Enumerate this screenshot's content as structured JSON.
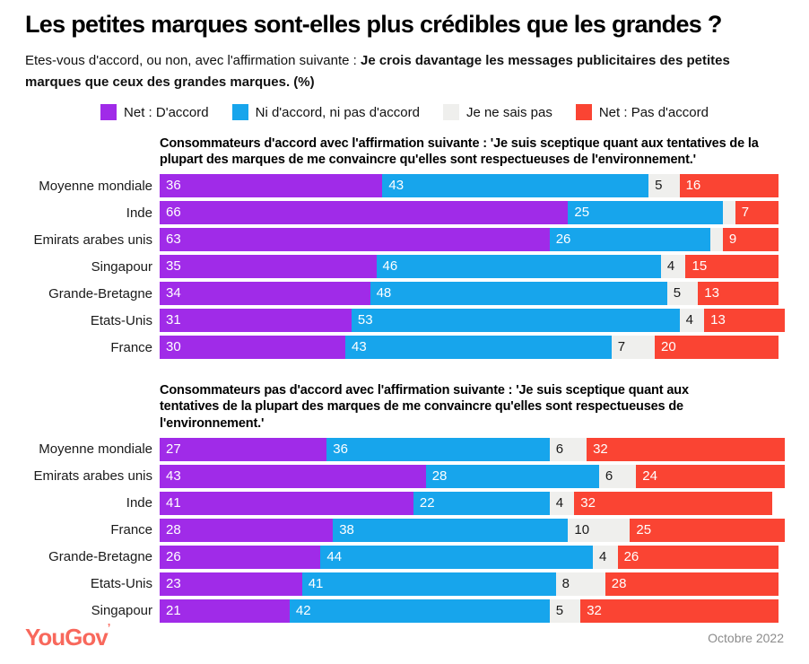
{
  "page": {
    "title": "Les petites marques sont-elles plus crédibles que les grandes ?",
    "subtitle_regular": "Etes-vous d'accord, ou non, avec l'affirmation suivante : ",
    "subtitle_bold": "Je crois davantage les messages publicitaires des petites marques que ceux des grandes marques. (%)"
  },
  "legend": {
    "items": [
      {
        "label": "Net : D'accord",
        "color": "#A02BE8"
      },
      {
        "label": "Ni d'accord, ni pas d'accord",
        "color": "#17A5EC"
      },
      {
        "label": "Je ne sais pas",
        "color": "#EFEFED"
      },
      {
        "label": "Net : Pas d'accord",
        "color": "#FA4433"
      }
    ]
  },
  "chart_data": [
    {
      "type": "bar",
      "stacked": true,
      "orientation": "horizontal",
      "unit": "%",
      "title": "Consommateurs d'accord avec l'affirmation suivante : 'Je suis sceptique quant aux tentatives de la plupart des marques de me convaincre qu'elles sont respectueuses de l'environnement.'",
      "series_names": [
        "Net : D'accord",
        "Ni d'accord, ni pas d'accord",
        "Je ne sais pas",
        "Net : Pas d'accord"
      ],
      "rows": [
        {
          "category": "Moyenne mondiale",
          "values": [
            36,
            43,
            5,
            16
          ],
          "labels": [
            "36",
            "43",
            "5",
            "16"
          ]
        },
        {
          "category": "Inde",
          "values": [
            66,
            25,
            2,
            7
          ],
          "labels": [
            "66",
            "25",
            "",
            "7"
          ]
        },
        {
          "category": "Emirats arabes unis",
          "values": [
            63,
            26,
            2,
            9
          ],
          "labels": [
            "63",
            "26",
            "",
            "9"
          ]
        },
        {
          "category": "Singapour",
          "values": [
            35,
            46,
            4,
            15
          ],
          "labels": [
            "35",
            "46",
            "4",
            "15"
          ]
        },
        {
          "category": "Grande-Bretagne",
          "values": [
            34,
            48,
            5,
            13
          ],
          "labels": [
            "34",
            "48",
            "5",
            "13"
          ]
        },
        {
          "category": "Etats-Unis",
          "values": [
            31,
            53,
            4,
            13
          ],
          "labels": [
            "31",
            "53",
            "4",
            "13"
          ]
        },
        {
          "category": "France",
          "values": [
            30,
            43,
            7,
            20
          ],
          "labels": [
            "30",
            "43",
            "7",
            "20"
          ]
        }
      ]
    },
    {
      "type": "bar",
      "stacked": true,
      "orientation": "horizontal",
      "unit": "%",
      "title": "Consommateurs pas d'accord avec l'affirmation suivante : 'Je suis sceptique quant aux tentatives de la plupart des marques de me convaincre qu'elles sont respectueuses de l'environnement.'",
      "series_names": [
        "Net : D'accord",
        "Ni d'accord, ni pas d'accord",
        "Je ne sais pas",
        "Net : Pas d'accord"
      ],
      "rows": [
        {
          "category": "Moyenne mondiale",
          "values": [
            27,
            36,
            6,
            32
          ],
          "labels": [
            "27",
            "36",
            "6",
            "32"
          ]
        },
        {
          "category": "Emirats arabes unis",
          "values": [
            43,
            28,
            6,
            24
          ],
          "labels": [
            "43",
            "28",
            "6",
            "24"
          ]
        },
        {
          "category": "Inde",
          "values": [
            41,
            22,
            4,
            32
          ],
          "labels": [
            "41",
            "22",
            "4",
            "32"
          ]
        },
        {
          "category": "France",
          "values": [
            28,
            38,
            10,
            25
          ],
          "labels": [
            "28",
            "38",
            "10",
            "25"
          ]
        },
        {
          "category": "Grande-Bretagne",
          "values": [
            26,
            44,
            4,
            26
          ],
          "labels": [
            "26",
            "44",
            "4",
            "26"
          ]
        },
        {
          "category": "Etats-Unis",
          "values": [
            23,
            41,
            8,
            28
          ],
          "labels": [
            "23",
            "41",
            "8",
            "28"
          ]
        },
        {
          "category": "Singapour",
          "values": [
            21,
            42,
            5,
            32
          ],
          "labels": [
            "21",
            "42",
            "5",
            "32"
          ]
        }
      ]
    }
  ],
  "footer": {
    "logo": "YouGov",
    "date": "Octobre 2022"
  },
  "colors": {
    "agree": "#A02BE8",
    "neutral": "#17A5EC",
    "dont_know": "#EFEFED",
    "disagree": "#FA4433",
    "logo": "#F8685C",
    "text_on_dark": "#FFFFFF",
    "text_on_light": "#1A1A1A"
  }
}
